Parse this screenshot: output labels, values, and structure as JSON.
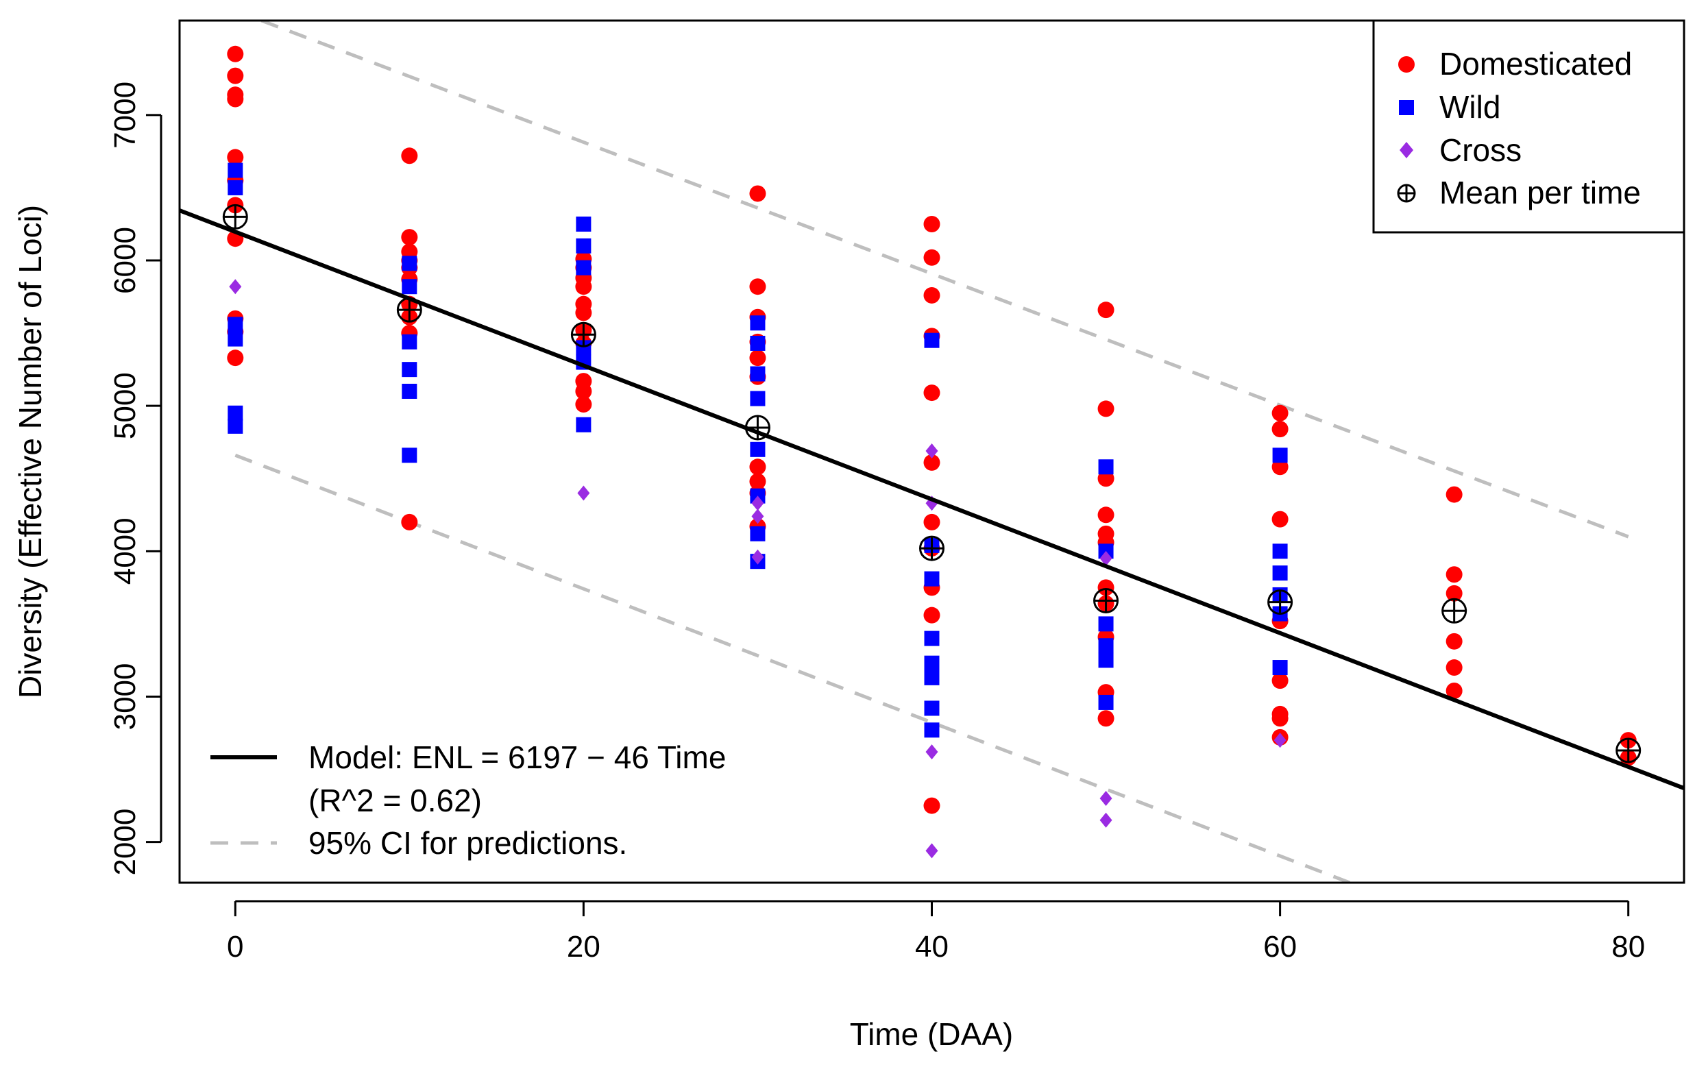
{
  "chart_data": {
    "type": "scatter",
    "title": "",
    "xlabel": "Time (DAA)",
    "ylabel": "Diversity (Effective Number of Loci)",
    "xlim": [
      -3.2,
      83.2
    ],
    "ylim": [
      1720,
      7650
    ],
    "xticks": [
      0,
      20,
      40,
      60,
      80
    ],
    "yticks": [
      2000,
      3000,
      4000,
      5000,
      6000,
      7000
    ],
    "grid": false,
    "legend_position": "top-right",
    "series": [
      {
        "name": "Domesticated",
        "color": "#ff0000",
        "marker": "circle",
        "points": [
          [
            0,
            7420
          ],
          [
            0,
            7270
          ],
          [
            0,
            7140
          ],
          [
            0,
            7110
          ],
          [
            0,
            6710
          ],
          [
            0,
            6550
          ],
          [
            0,
            6380
          ],
          [
            0,
            6150
          ],
          [
            0,
            5600
          ],
          [
            0,
            5510
          ],
          [
            0,
            5330
          ],
          [
            10,
            6720
          ],
          [
            10,
            6160
          ],
          [
            10,
            6060
          ],
          [
            10,
            6000
          ],
          [
            10,
            5950
          ],
          [
            10,
            5870
          ],
          [
            10,
            5700
          ],
          [
            10,
            5610
          ],
          [
            10,
            5500
          ],
          [
            10,
            4200
          ],
          [
            20,
            6010
          ],
          [
            20,
            5950
          ],
          [
            20,
            5880
          ],
          [
            20,
            5820
          ],
          [
            20,
            5700
          ],
          [
            20,
            5640
          ],
          [
            20,
            5520
          ],
          [
            20,
            5430
          ],
          [
            20,
            5170
          ],
          [
            20,
            5100
          ],
          [
            20,
            5010
          ],
          [
            30,
            6460
          ],
          [
            30,
            5820
          ],
          [
            30,
            5610
          ],
          [
            30,
            5440
          ],
          [
            30,
            5330
          ],
          [
            30,
            5200
          ],
          [
            30,
            4580
          ],
          [
            30,
            4480
          ],
          [
            30,
            4400
          ],
          [
            30,
            4170
          ],
          [
            40,
            6250
          ],
          [
            40,
            6020
          ],
          [
            40,
            5760
          ],
          [
            40,
            5480
          ],
          [
            40,
            5090
          ],
          [
            40,
            4610
          ],
          [
            40,
            4200
          ],
          [
            40,
            4020
          ],
          [
            40,
            3750
          ],
          [
            40,
            3560
          ],
          [
            40,
            2250
          ],
          [
            50,
            5660
          ],
          [
            50,
            4980
          ],
          [
            50,
            4500
          ],
          [
            50,
            4250
          ],
          [
            50,
            4120
          ],
          [
            50,
            4060
          ],
          [
            50,
            3750
          ],
          [
            50,
            3640
          ],
          [
            50,
            3410
          ],
          [
            50,
            3030
          ],
          [
            50,
            2850
          ],
          [
            60,
            4950
          ],
          [
            60,
            4840
          ],
          [
            60,
            4580
          ],
          [
            60,
            4220
          ],
          [
            60,
            3520
          ],
          [
            60,
            3110
          ],
          [
            60,
            2880
          ],
          [
            60,
            2850
          ],
          [
            60,
            2720
          ],
          [
            70,
            4390
          ],
          [
            70,
            3840
          ],
          [
            70,
            3710
          ],
          [
            70,
            3380
          ],
          [
            70,
            3200
          ],
          [
            70,
            3040
          ],
          [
            80,
            2700
          ],
          [
            80,
            2580
          ]
        ]
      },
      {
        "name": "Wild",
        "color": "#0000ff",
        "marker": "square",
        "points": [
          [
            0,
            6620
          ],
          [
            0,
            6500
          ],
          [
            0,
            5560
          ],
          [
            0,
            5460
          ],
          [
            0,
            4950
          ],
          [
            0,
            4860
          ],
          [
            10,
            5980
          ],
          [
            10,
            5820
          ],
          [
            10,
            5440
          ],
          [
            10,
            5250
          ],
          [
            10,
            5100
          ],
          [
            10,
            4660
          ],
          [
            20,
            6250
          ],
          [
            20,
            6100
          ],
          [
            20,
            5950
          ],
          [
            20,
            5400
          ],
          [
            20,
            5300
          ],
          [
            20,
            4870
          ],
          [
            30,
            5570
          ],
          [
            30,
            5430
          ],
          [
            30,
            5220
          ],
          [
            30,
            5050
          ],
          [
            30,
            4700
          ],
          [
            30,
            4380
          ],
          [
            30,
            4120
          ],
          [
            30,
            3930
          ],
          [
            40,
            5450
          ],
          [
            40,
            4040
          ],
          [
            40,
            3810
          ],
          [
            40,
            3400
          ],
          [
            40,
            3230
          ],
          [
            40,
            3130
          ],
          [
            40,
            2920
          ],
          [
            40,
            2770
          ],
          [
            50,
            4580
          ],
          [
            50,
            4000
          ],
          [
            50,
            3500
          ],
          [
            50,
            3350
          ],
          [
            50,
            3250
          ],
          [
            50,
            2960
          ],
          [
            60,
            4660
          ],
          [
            60,
            4000
          ],
          [
            60,
            3850
          ],
          [
            60,
            3700
          ],
          [
            60,
            3570
          ],
          [
            60,
            3200
          ]
        ]
      },
      {
        "name": "Cross",
        "color": "#9a2be2",
        "marker": "diamond",
        "points": [
          [
            0,
            5820
          ],
          [
            20,
            4400
          ],
          [
            30,
            4330
          ],
          [
            30,
            4240
          ],
          [
            30,
            3960
          ],
          [
            40,
            4690
          ],
          [
            40,
            4330
          ],
          [
            40,
            2620
          ],
          [
            40,
            1940
          ],
          [
            50,
            3950
          ],
          [
            50,
            2300
          ],
          [
            50,
            2150
          ],
          [
            60,
            2700
          ]
        ]
      },
      {
        "name": "Mean per time",
        "color": "#000000",
        "marker": "circle-plus",
        "points": [
          [
            0,
            6300
          ],
          [
            10,
            5660
          ],
          [
            20,
            5490
          ],
          [
            30,
            4850
          ],
          [
            40,
            4020
          ],
          [
            50,
            3660
          ],
          [
            60,
            3650
          ],
          [
            70,
            3590
          ],
          [
            80,
            2630
          ]
        ]
      }
    ],
    "model": {
      "intercept": 6197,
      "slope": -46,
      "r_squared": 0.62
    },
    "ci_upper": [
      [
        1.5,
        7650
      ],
      [
        80,
        4100
      ]
    ],
    "ci_lower": [
      [
        0,
        4660
      ],
      [
        64,
        1720
      ]
    ]
  },
  "legend": {
    "domesticated": "Domesticated",
    "wild": "Wild",
    "cross": "Cross",
    "mean": "Mean per time"
  },
  "annotation": {
    "model_line1": "Model: ENL = 6197 − 46 Time",
    "model_line2": "(R^2 = 0.62)",
    "ci": "95% CI for predictions."
  },
  "colors": {
    "domesticated": "#ff0000",
    "wild": "#0000ff",
    "cross": "#9a2be2",
    "mean": "#000000",
    "fit_line": "#000000",
    "ci_line": "#bebebe"
  }
}
